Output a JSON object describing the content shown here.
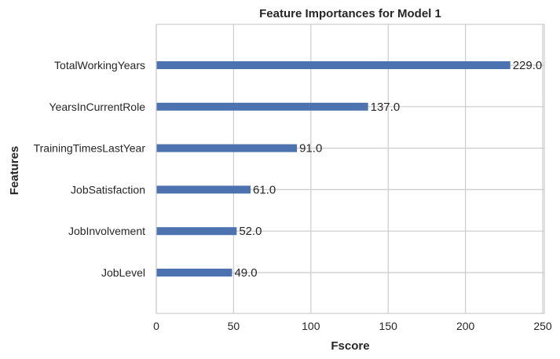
{
  "chart_data": {
    "type": "bar",
    "orientation": "horizontal",
    "title": "Feature Importances for Model 1",
    "xlabel": "Fscore",
    "ylabel": "Features",
    "categories": [
      "TotalWorkingYears",
      "YearsInCurrentRole",
      "TrainingTimesLastYear",
      "JobSatisfaction",
      "JobInvolvement",
      "JobLevel"
    ],
    "values": [
      229,
      137,
      91,
      61,
      52,
      49
    ],
    "value_labels": [
      "229.0",
      "137.0",
      "91.0",
      "61.0",
      "52.0",
      "49.0"
    ],
    "xlim": [
      0,
      251
    ],
    "xticks": [
      0,
      50,
      100,
      150,
      200,
      250
    ],
    "xtick_labels": [
      "0",
      "50",
      "100",
      "150",
      "200",
      "250"
    ],
    "grid": true,
    "bar_color": "#4c72b0"
  }
}
